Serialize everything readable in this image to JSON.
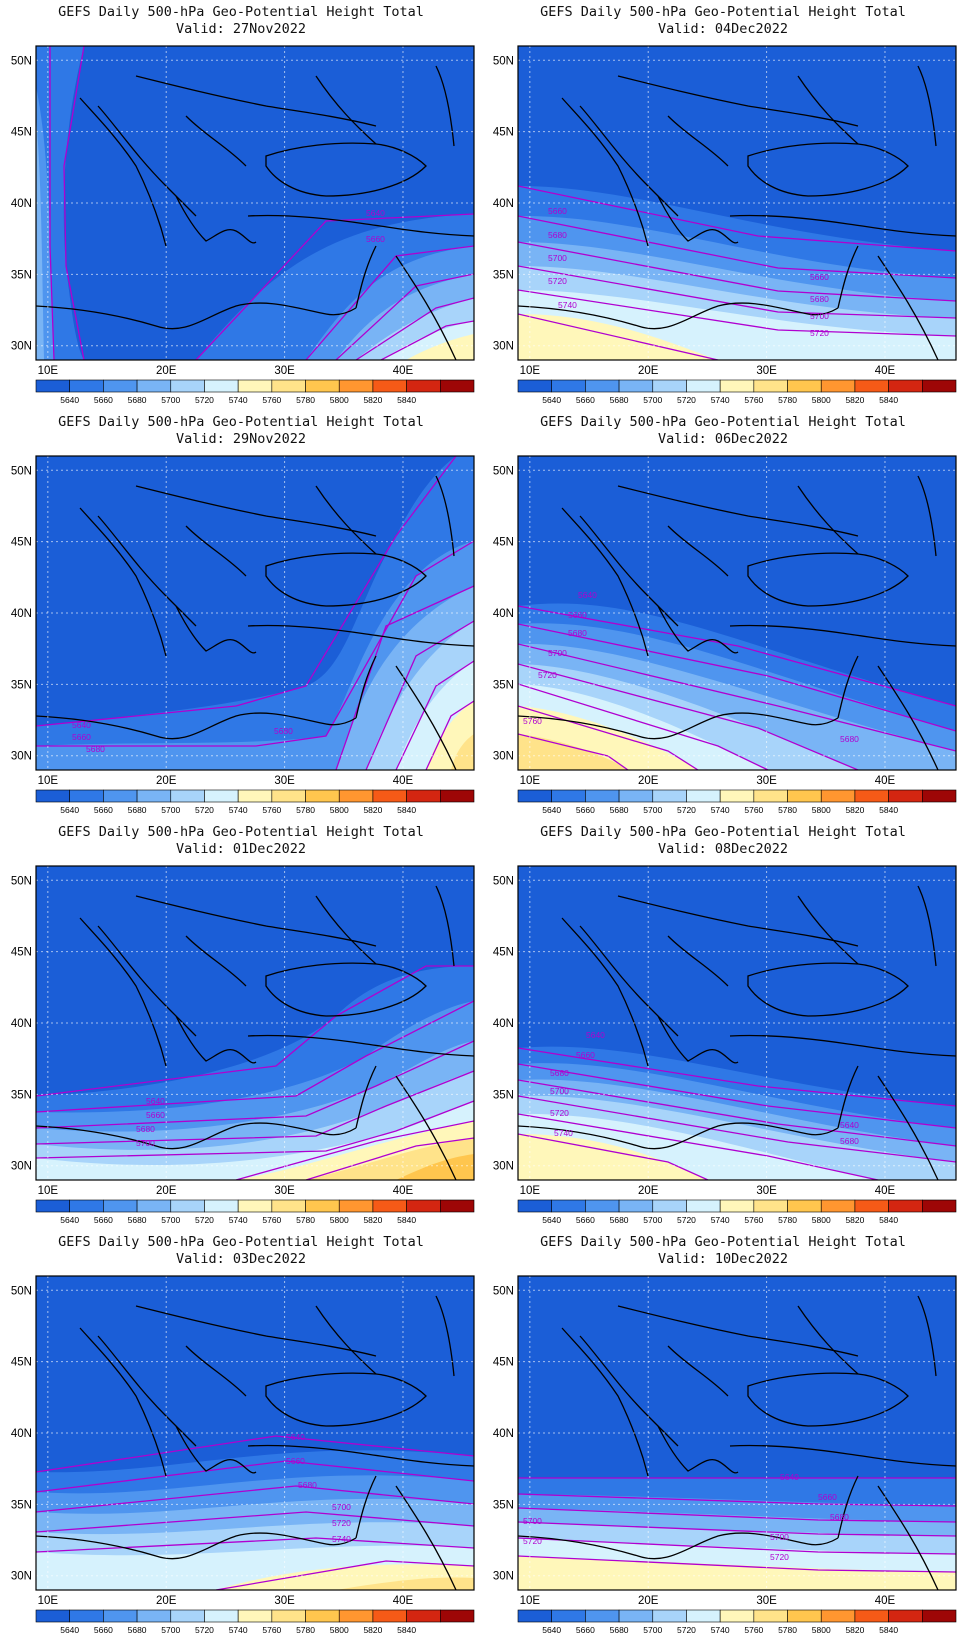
{
  "legend": {
    "levels": [
      "5640",
      "5660",
      "5680",
      "5700",
      "5720",
      "5740",
      "5760",
      "5780",
      "5800",
      "5820",
      "5840"
    ],
    "colors": [
      "#1b5ed7",
      "#2f78e6",
      "#4f95ef",
      "#79b4f5",
      "#a8d4fa",
      "#d6f2fd",
      "#fff7ba",
      "#ffe38a",
      "#ffc64e",
      "#ff9630",
      "#f65a17",
      "#d42611",
      "#9e0606"
    ]
  },
  "axes": {
    "lat_labels": [
      "50N",
      "45N",
      "40N",
      "35N",
      "30N"
    ],
    "lon_labels": [
      "10E",
      "20E",
      "30E",
      "40E"
    ]
  },
  "panels": [
    {
      "title": "GEFS Daily 500-hPa Geo-Potential Height Total",
      "valid": "Valid: 27Nov2022",
      "contour_labels": [
        "5640",
        "5660"
      ]
    },
    {
      "title": "GEFS Daily 500-hPa Geo-Potential Height Total",
      "valid": "Valid: 04Dec2022",
      "contour_labels": [
        "5660",
        "5680",
        "5700",
        "5720",
        "5740",
        "5660",
        "5680",
        "5700",
        "5720"
      ]
    },
    {
      "title": "GEFS Daily 500-hPa Geo-Potential Height Total",
      "valid": "Valid: 29Nov2022",
      "contour_labels": [
        "5640",
        "5660",
        "5680",
        "5680"
      ]
    },
    {
      "title": "GEFS Daily 500-hPa Geo-Potential Height Total",
      "valid": "Valid: 06Dec2022",
      "contour_labels": [
        "5640",
        "5660",
        "5680",
        "5700",
        "5720",
        "5760",
        "5680"
      ]
    },
    {
      "title": "GEFS Daily 500-hPa Geo-Potential Height Total",
      "valid": "Valid: 01Dec2022",
      "contour_labels": [
        "5640",
        "5660",
        "5680",
        "5700"
      ]
    },
    {
      "title": "GEFS Daily 500-hPa Geo-Potential Height Total",
      "valid": "Valid: 08Dec2022",
      "contour_labels": [
        "5640",
        "5660",
        "5680",
        "5700",
        "5720",
        "5740",
        "5640",
        "5680"
      ]
    },
    {
      "title": "GEFS Daily 500-hPa Geo-Potential Height Total",
      "valid": "Valid: 03Dec2022",
      "contour_labels": [
        "5640",
        "5660",
        "5680",
        "5700",
        "5720",
        "5740"
      ]
    },
    {
      "title": "GEFS Daily 500-hPa Geo-Potential Height Total",
      "valid": "Valid: 10Dec2022",
      "contour_labels": [
        "5640",
        "5660",
        "5680",
        "5700",
        "5720",
        "5700",
        "5720"
      ]
    }
  ]
}
